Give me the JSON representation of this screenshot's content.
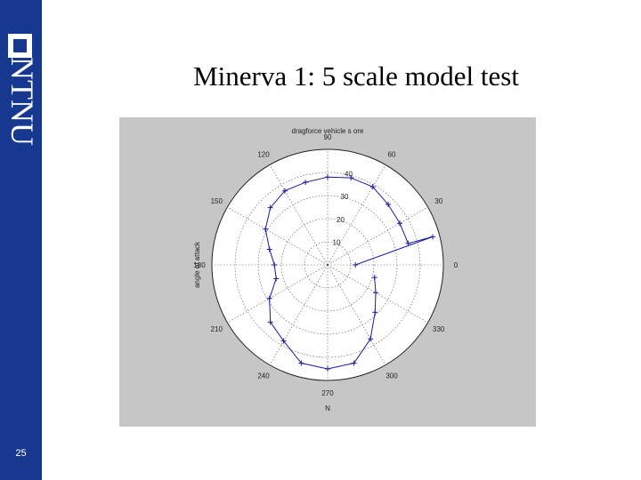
{
  "sidebar": {
    "brand": "NTNU",
    "page_number": "25",
    "color": "#17388f"
  },
  "slide": {
    "title": "Minerva 1: 5 scale model test"
  },
  "chart_data": {
    "type": "polar-line",
    "title": "dragforce vehicle s ore",
    "ylabel": "angle of attack",
    "xlabel": "N",
    "radial_range": [
      0,
      50
    ],
    "radial_ticks": [
      10,
      20,
      30,
      40
    ],
    "radial_tick_labels": [
      "10",
      "20",
      "30",
      "40"
    ],
    "angle_ticks": [
      0,
      30,
      60,
      90,
      120,
      150,
      180,
      210,
      240,
      270,
      300,
      330
    ],
    "angle_tick_labels": [
      "0",
      "30",
      "60",
      "90",
      "120",
      "150",
      "180",
      "210",
      "240",
      "270",
      "300",
      "330"
    ],
    "grid": true,
    "series": [
      {
        "color": "#1a1aa0",
        "marker": "+",
        "points": [
          {
            "angle": 0,
            "r": 12
          },
          {
            "angle": 15,
            "r": 47
          },
          {
            "angle": 15,
            "r": 36
          },
          {
            "angle": 30,
            "r": 36
          },
          {
            "angle": 45,
            "r": 37
          },
          {
            "angle": 60,
            "r": 39
          },
          {
            "angle": 75,
            "r": 39
          },
          {
            "angle": 90,
            "r": 38
          },
          {
            "angle": 105,
            "r": 37
          },
          {
            "angle": 120,
            "r": 37
          },
          {
            "angle": 135,
            "r": 35
          },
          {
            "angle": 150,
            "r": 31
          },
          {
            "angle": 165,
            "r": 26
          },
          {
            "angle": 180,
            "r": 23
          },
          {
            "angle": 195,
            "r": 23
          },
          {
            "angle": 210,
            "r": 29
          },
          {
            "angle": 225,
            "r": 35
          },
          {
            "angle": 240,
            "r": 38
          },
          {
            "angle": 255,
            "r": 44
          },
          {
            "angle": 270,
            "r": 45
          },
          {
            "angle": 285,
            "r": 44
          },
          {
            "angle": 300,
            "r": 37
          },
          {
            "angle": 315,
            "r": 29
          },
          {
            "angle": 330,
            "r": 24
          },
          {
            "angle": 345,
            "r": 21
          }
        ]
      }
    ]
  }
}
